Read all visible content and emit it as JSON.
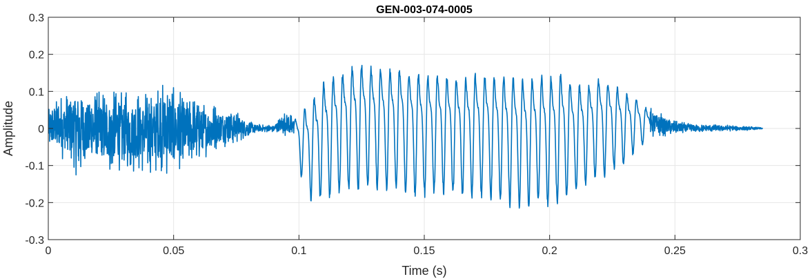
{
  "chart_data": {
    "type": "line",
    "title": "GEN-003-074-0005",
    "xlabel": "Time (s)",
    "ylabel": "Amplitude",
    "xlim": [
      0,
      0.3
    ],
    "ylim": [
      -0.3,
      0.3
    ],
    "xticks": [
      0,
      0.05,
      0.1,
      0.15,
      0.2,
      0.25,
      0.3
    ],
    "xtick_labels": [
      "0",
      "0.05",
      "0.1",
      "0.15",
      "0.2",
      "0.25",
      "0.3"
    ],
    "yticks": [
      -0.3,
      -0.2,
      -0.1,
      0,
      0.1,
      0.2,
      0.3
    ],
    "ytick_labels": [
      "-0.3",
      "-0.2",
      "-0.1",
      "0",
      "0.1",
      "0.2",
      "0.3"
    ],
    "grid": true,
    "series_color": "#0072BD",
    "series": [
      {
        "x": [
          0,
          0.005,
          0.01,
          0.012,
          0.015,
          0.02,
          0.025,
          0.03,
          0.035,
          0.04,
          0.045,
          0.048,
          0.05,
          0.055,
          0.06,
          0.065,
          0.07,
          0.075,
          0.08,
          0.085,
          0.09,
          0.095,
          0.098,
          0.1,
          0.105,
          0.11,
          0.115,
          0.12,
          0.125,
          0.13,
          0.135,
          0.14,
          0.145,
          0.15,
          0.155,
          0.16,
          0.165,
          0.17,
          0.175,
          0.18,
          0.185,
          0.19,
          0.195,
          0.2,
          0.205,
          0.21,
          0.215,
          0.22,
          0.225,
          0.23,
          0.235,
          0.24,
          0.25,
          0.26,
          0.27,
          0.28,
          0.285
        ],
        "y_max": [
          0.05,
          0.09,
          0.1,
          0.14,
          0.1,
          0.1,
          0.1,
          0.1,
          0.1,
          0.1,
          0.12,
          0.13,
          0.11,
          0.09,
          0.08,
          0.07,
          0.06,
          0.05,
          0.02,
          0.01,
          0.01,
          0.05,
          0.03,
          0.06,
          0.12,
          0.18,
          0.2,
          0.22,
          0.23,
          0.22,
          0.21,
          0.22,
          0.21,
          0.2,
          0.2,
          0.19,
          0.19,
          0.2,
          0.2,
          0.2,
          0.2,
          0.19,
          0.2,
          0.2,
          0.21,
          0.17,
          0.16,
          0.18,
          0.16,
          0.13,
          0.1,
          0.06,
          0.02,
          0.01,
          0.01,
          0.005,
          0.002
        ],
        "y_min": [
          -0.05,
          -0.08,
          -0.1,
          -0.15,
          -0.1,
          -0.11,
          -0.12,
          -0.11,
          -0.12,
          -0.12,
          -0.12,
          -0.13,
          -0.12,
          -0.1,
          -0.09,
          -0.07,
          -0.05,
          -0.04,
          -0.02,
          -0.01,
          -0.01,
          -0.02,
          -0.03,
          -0.12,
          -0.2,
          -0.2,
          -0.19,
          -0.18,
          -0.17,
          -0.17,
          -0.17,
          -0.18,
          -0.19,
          -0.19,
          -0.18,
          -0.18,
          -0.19,
          -0.19,
          -0.19,
          -0.21,
          -0.22,
          -0.22,
          -0.21,
          -0.22,
          -0.21,
          -0.18,
          -0.15,
          -0.14,
          -0.12,
          -0.1,
          -0.06,
          -0.03,
          -0.015,
          -0.01,
          -0.008,
          -0.005,
          -0.002
        ]
      }
    ]
  }
}
